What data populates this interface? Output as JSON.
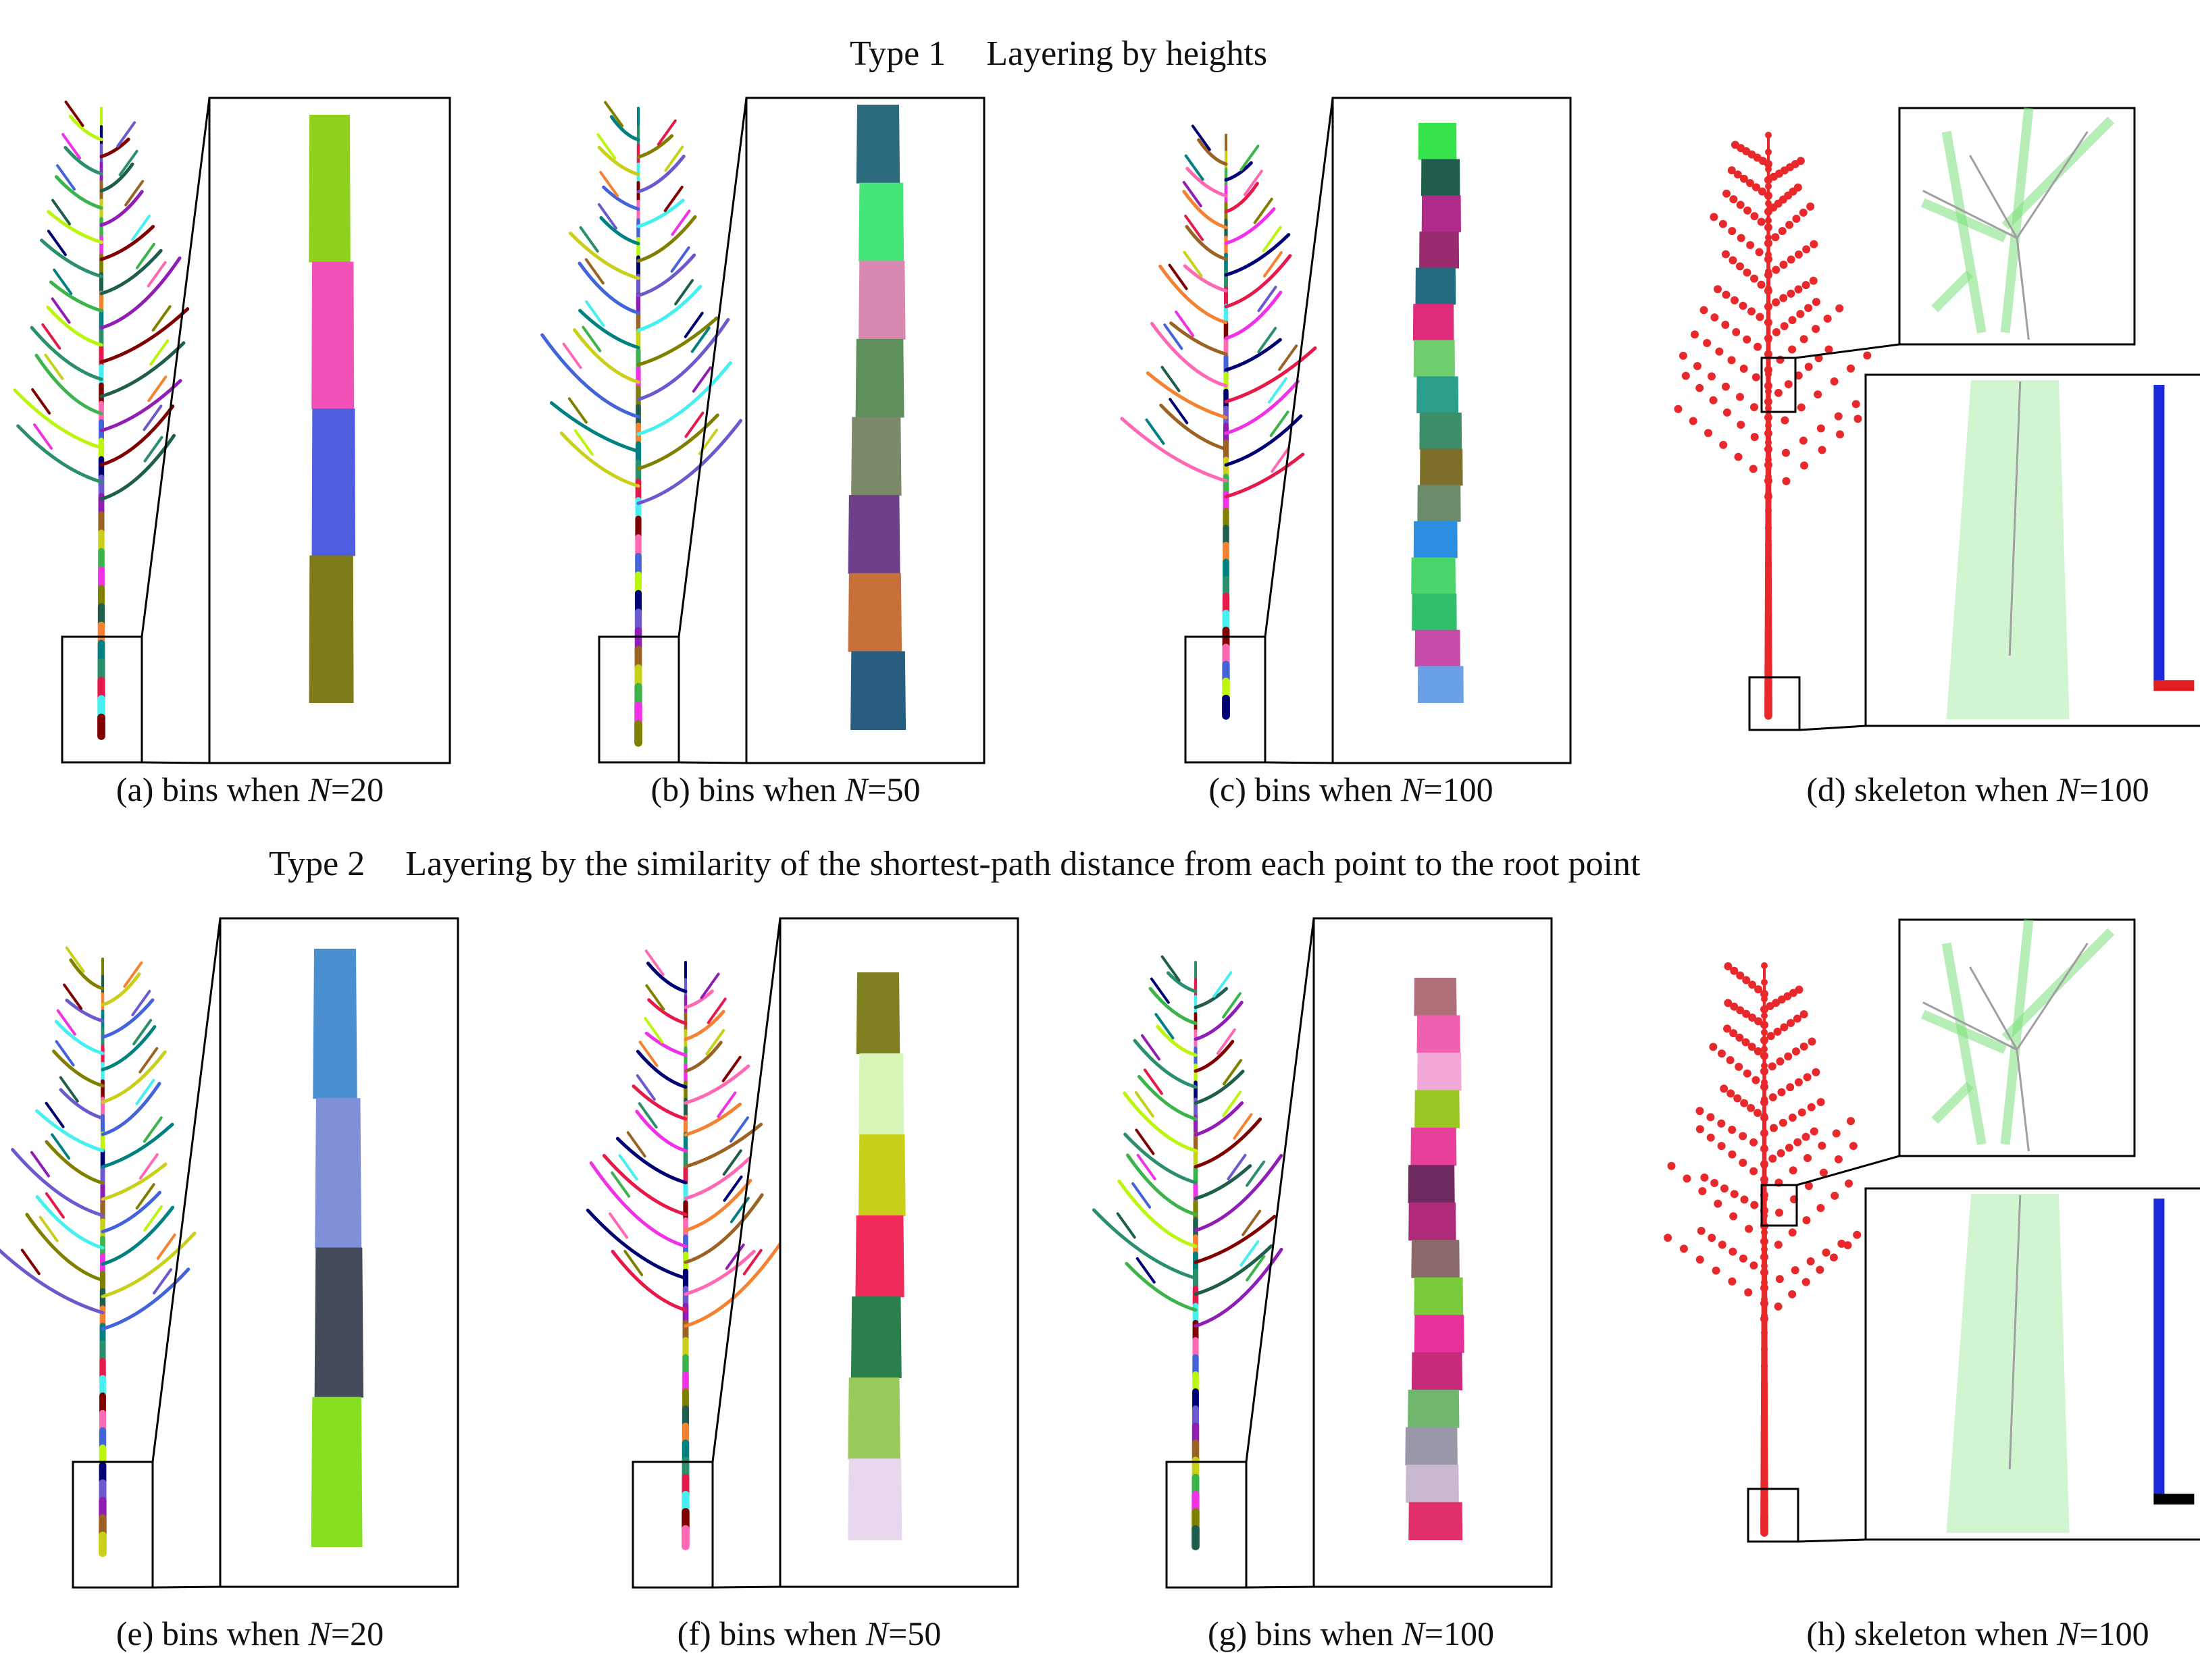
{
  "sections": [
    {
      "label": "Type 1",
      "title": "Layering by heights"
    },
    {
      "label": "Type 2",
      "title": "Layering by the similarity of the shortest-path distance from each point to the root point"
    }
  ],
  "panels": [
    {
      "id": "a",
      "caption_pre": "(a) bins when ",
      "caption_var": "N",
      "caption_post": "=20",
      "bins": [
        "#8fd11f",
        "#f252b8",
        "#4d5ee0",
        "#7f7a1a"
      ]
    },
    {
      "id": "b",
      "caption_pre": "(b) bins when ",
      "caption_var": "N",
      "caption_post": "=50",
      "bins": [
        "#2c6a7d",
        "#46e57a",
        "#d988b2",
        "#5f8f5a",
        "#7d8a6a",
        "#6e3f8a",
        "#c8703a",
        "#285e7f"
      ]
    },
    {
      "id": "c",
      "caption_pre": "(c) bins when ",
      "caption_var": "N",
      "caption_post": "=100",
      "bins": [
        "#37e34a",
        "#1f5d4d",
        "#b02a8a",
        "#9a2b6e",
        "#226a7e",
        "#e02b7a",
        "#6fcf6f",
        "#2a9e8a",
        "#3d8f6a",
        "#7d6e2a",
        "#6a8a6a",
        "#2a8fe0",
        "#4ad46a",
        "#2fbf6a",
        "#c84aa8",
        "#6aa0e8"
      ]
    },
    {
      "id": "d",
      "caption_pre": "(d) skeleton when ",
      "caption_var": "N",
      "caption_post": "=100"
    },
    {
      "id": "e",
      "caption_pre": "(e) bins when ",
      "caption_var": "N",
      "caption_post": "=20",
      "bins": [
        "#4a8fd0",
        "#7f8fd8",
        "#444c5c",
        "#86e021"
      ]
    },
    {
      "id": "f",
      "caption_pre": "(f) bins when ",
      "caption_var": "N",
      "caption_post": "=50",
      "bins": [
        "#808020",
        "#d8f5b8",
        "#c8d01a",
        "#f02a5a",
        "#2a7f4a",
        "#9acb5a",
        "#e8d8ee"
      ]
    },
    {
      "id": "g",
      "caption_pre": "(g) bins when ",
      "caption_var": "N",
      "caption_post": "=100",
      "bins": [
        "#b0707a",
        "#f060b0",
        "#f2a8d8",
        "#9ac822",
        "#e8409a",
        "#6e2a5e",
        "#b02a7a",
        "#8a6a6a",
        "#7acb3a",
        "#e8309a",
        "#c82a7a",
        "#70b870",
        "#9a98a8",
        "#c8b8d0",
        "#e0306a"
      ]
    },
    {
      "id": "h",
      "caption_pre": "(h) skeleton when ",
      "caption_var": "N",
      "caption_post": "=100"
    }
  ],
  "colors": {
    "skeleton": "#e8282a",
    "cloud": "#7ce07c",
    "axis_blue": "#1a2ad8",
    "axis_red": "#e02020",
    "axis_black": "#000000"
  }
}
